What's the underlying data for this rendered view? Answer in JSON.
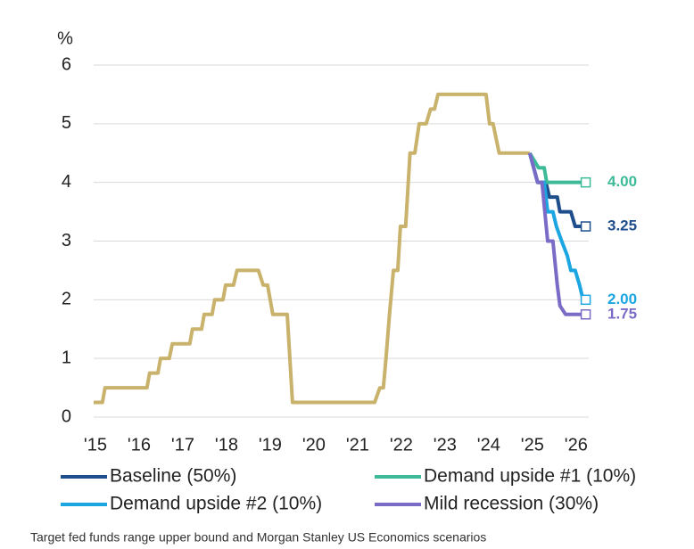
{
  "chart_data": {
    "type": "line",
    "y_label": "%",
    "caption": "Target fed funds range upper bound and Morgan Stanley US Economics scenarios",
    "xlim": [
      2014.96,
      2026.29
    ],
    "xticks": [
      {
        "value": 2015,
        "label": "'15"
      },
      {
        "value": 2016,
        "label": "'16"
      },
      {
        "value": 2017,
        "label": "'17"
      },
      {
        "value": 2018,
        "label": "'18"
      },
      {
        "value": 2019,
        "label": "'19"
      },
      {
        "value": 2020,
        "label": "'20"
      },
      {
        "value": 2021,
        "label": "'21"
      },
      {
        "value": 2022,
        "label": "'22"
      },
      {
        "value": 2023,
        "label": "'23"
      },
      {
        "value": 2024,
        "label": "'24"
      },
      {
        "value": 2025,
        "label": "'25"
      },
      {
        "value": 2026,
        "label": "'26"
      }
    ],
    "ylim": [
      0,
      6
    ],
    "yticks": [
      0,
      1,
      2,
      3,
      4,
      5,
      6
    ],
    "grid": true,
    "series": [
      {
        "color": "#c9b26b",
        "x": [
          2014.96,
          2015.16,
          2015.22,
          2016.18,
          2016.24,
          2016.43,
          2016.49,
          2016.69,
          2016.76,
          2017.16,
          2017.22,
          2017.43,
          2017.49,
          2017.67,
          2017.73,
          2017.92,
          2017.98,
          2018.16,
          2018.24,
          2018.73,
          2018.84,
          2018.94,
          2019.06,
          2019.39,
          2019.51,
          2021.39,
          2021.51,
          2021.59,
          2021.65,
          2021.73,
          2021.82,
          2021.92,
          2021.98,
          2022.1,
          2022.2,
          2022.31,
          2022.41,
          2022.57,
          2022.67,
          2022.76,
          2022.84,
          2023.94,
          2024.02,
          2024.1,
          2024.24,
          2024.94
        ],
        "values": [
          0.25,
          0.25,
          0.5,
          0.5,
          0.75,
          0.75,
          1.0,
          1.0,
          1.25,
          1.25,
          1.5,
          1.5,
          1.75,
          1.75,
          2.0,
          2.0,
          2.25,
          2.25,
          2.5,
          2.5,
          2.25,
          2.25,
          1.75,
          1.75,
          0.25,
          0.25,
          0.5,
          0.5,
          1.0,
          1.75,
          2.5,
          2.5,
          3.25,
          3.25,
          4.5,
          4.5,
          5.0,
          5.0,
          5.25,
          5.25,
          5.5,
          5.5,
          5.0,
          5.0,
          4.5,
          4.5
        ]
      },
      {
        "name": "Baseline (50%)",
        "color": "#1f4e8c",
        "x": [
          2024.94,
          2025.12,
          2025.31,
          2025.39,
          2025.57,
          2025.63,
          2025.88,
          2025.98,
          2026.22
        ],
        "values": [
          4.5,
          4.0,
          4.0,
          3.75,
          3.75,
          3.5,
          3.5,
          3.25,
          3.25
        ],
        "value_labels": [
          null,
          null,
          null,
          null,
          null,
          null,
          null,
          null,
          "3.25"
        ]
      },
      {
        "name": "Demand upside #1 (10%)",
        "color": "#3dbb98",
        "x": [
          2024.94,
          2025.14,
          2025.27,
          2025.33,
          2026.22
        ],
        "values": [
          4.5,
          4.25,
          4.25,
          4.0,
          4.0
        ],
        "value_labels": [
          null,
          null,
          null,
          null,
          "4.00"
        ]
      },
      {
        "name": "Demand upside #2 (10%)",
        "color": "#1ba6e2",
        "x": [
          2024.94,
          2025.12,
          2025.27,
          2025.35,
          2025.47,
          2025.55,
          2025.67,
          2025.8,
          2025.88,
          2025.98,
          2026.08,
          2026.16,
          2026.22
        ],
        "values": [
          4.5,
          4.0,
          4.0,
          3.5,
          3.5,
          3.25,
          3.0,
          2.75,
          2.5,
          2.5,
          2.25,
          2.0,
          2.0
        ],
        "value_labels": [
          null,
          null,
          null,
          null,
          null,
          null,
          null,
          null,
          null,
          null,
          null,
          null,
          "2.00"
        ]
      },
      {
        "name": "Mild recession (30%)",
        "color": "#7a6cc6",
        "x": [
          2024.94,
          2025.12,
          2025.22,
          2025.35,
          2025.47,
          2025.57,
          2025.63,
          2025.76,
          2026.22
        ],
        "values": [
          4.5,
          4.0,
          4.0,
          3.0,
          3.0,
          2.25,
          1.9,
          1.75,
          1.75
        ],
        "value_labels": [
          null,
          null,
          null,
          null,
          null,
          null,
          null,
          null,
          "1.75"
        ]
      }
    ]
  }
}
